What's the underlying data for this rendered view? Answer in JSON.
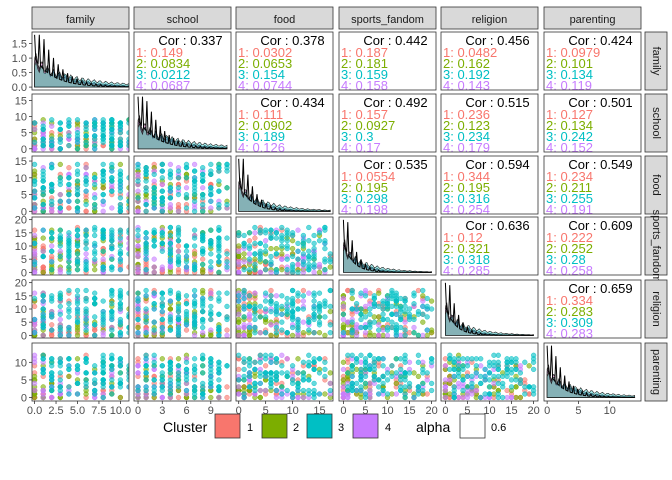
{
  "chart_data": {
    "type": "scatter",
    "variables": [
      "family",
      "school",
      "food",
      "sports_fandom",
      "religion",
      "parenting"
    ],
    "cor_prefix": "Cor : ",
    "correlations": [
      {
        "row": 0,
        "col": 1,
        "overall": "0.337",
        "clusters": [
          "1: 0.149",
          "2: 0.0834",
          "3: 0.0212",
          "4: 0.0687"
        ]
      },
      {
        "row": 0,
        "col": 2,
        "overall": "0.378",
        "clusters": [
          "1: 0.0302",
          "2: 0.0653",
          "3: 0.154",
          "4: 0.0744"
        ]
      },
      {
        "row": 0,
        "col": 3,
        "overall": "0.442",
        "clusters": [
          "1: 0.187",
          "2: 0.181",
          "3: 0.159",
          "4: 0.158"
        ]
      },
      {
        "row": 0,
        "col": 4,
        "overall": "0.456",
        "clusters": [
          "1: 0.0482",
          "2: 0.162",
          "3: 0.192",
          "4: 0.143"
        ]
      },
      {
        "row": 0,
        "col": 5,
        "overall": "0.424",
        "clusters": [
          "1: 0.0979",
          "2: 0.101",
          "3: 0.134",
          "4: 0.119"
        ]
      },
      {
        "row": 1,
        "col": 2,
        "overall": "0.434",
        "clusters": [
          "1: 0.111",
          "2: 0.0902",
          "3: 0.189",
          "4: 0.126"
        ]
      },
      {
        "row": 1,
        "col": 3,
        "overall": "0.492",
        "clusters": [
          "1: 0.157",
          "2: 0.0927",
          "3: 0.3",
          "4: 0.17"
        ]
      },
      {
        "row": 1,
        "col": 4,
        "overall": "0.515",
        "clusters": [
          "1: 0.236",
          "2: 0.123",
          "3: 0.234",
          "4: 0.179"
        ]
      },
      {
        "row": 1,
        "col": 5,
        "overall": "0.501",
        "clusters": [
          "1: 0.127",
          "2: 0.134",
          "3: 0.242",
          "4: 0.152"
        ]
      },
      {
        "row": 2,
        "col": 3,
        "overall": "0.535",
        "clusters": [
          "1: 0.0554",
          "2: 0.195",
          "3: 0.298",
          "4: 0.198"
        ]
      },
      {
        "row": 2,
        "col": 4,
        "overall": "0.594",
        "clusters": [
          "1: 0.344",
          "2: 0.195",
          "3: 0.316",
          "4: 0.254"
        ]
      },
      {
        "row": 2,
        "col": 5,
        "overall": "0.549",
        "clusters": [
          "1: 0.234",
          "2: 0.211",
          "3: 0.255",
          "4: 0.191"
        ]
      },
      {
        "row": 3,
        "col": 4,
        "overall": "0.636",
        "clusters": [
          "1: 0.12",
          "2: 0.321",
          "3: 0.318",
          "4: 0.285"
        ]
      },
      {
        "row": 3,
        "col": 5,
        "overall": "0.609",
        "clusters": [
          "1: 0.222",
          "2: 0.252",
          "3: 0.28",
          "4: 0.258"
        ]
      },
      {
        "row": 4,
        "col": 5,
        "overall": "0.659",
        "clusters": [
          "1: 0.334",
          "2: 0.283",
          "3: 0.309",
          "4: 0.283"
        ]
      }
    ],
    "x_ticks": [
      [
        "0.0",
        "2.5",
        "5.0",
        "7.5",
        "10.0"
      ],
      [
        "0",
        "3",
        "6",
        "9"
      ],
      [
        "0",
        "5",
        "10",
        "15"
      ],
      [
        "0",
        "5",
        "10",
        "15",
        "20"
      ],
      [
        "0",
        "5",
        "10",
        "15",
        "20"
      ],
      [
        "0",
        "5",
        "10"
      ]
    ],
    "x_tick_values": [
      [
        0,
        2.5,
        5,
        7.5,
        10
      ],
      [
        0,
        3,
        6,
        9
      ],
      [
        0,
        5,
        10,
        15
      ],
      [
        0,
        5,
        10,
        15,
        20
      ],
      [
        0,
        5,
        10,
        15,
        20
      ],
      [
        0,
        5,
        10
      ]
    ],
    "x_ranges": [
      [
        -0.3,
        11
      ],
      [
        -0.5,
        11.5
      ],
      [
        -0.5,
        17.5
      ],
      [
        -1,
        21
      ],
      [
        -1,
        21
      ],
      [
        -0.5,
        15
      ]
    ],
    "y_ticks": [
      [
        "0.0",
        "0.5",
        "1.0",
        "1.5"
      ],
      [
        "0",
        "5",
        "10",
        "15"
      ],
      [
        "0",
        "5",
        "10",
        "15"
      ],
      [
        "0",
        "5",
        "10",
        "15",
        "20"
      ],
      [
        "0",
        "5",
        "10",
        "15",
        "20"
      ],
      [
        "0",
        "5",
        "10"
      ]
    ],
    "y_tick_values": [
      [
        0,
        0.5,
        1,
        1.5
      ],
      [
        0,
        5,
        10,
        15
      ],
      [
        0,
        5,
        10,
        15
      ],
      [
        0,
        5,
        10,
        15,
        20
      ],
      [
        0,
        5,
        10,
        15,
        20
      ],
      [
        0,
        5,
        10
      ]
    ],
    "y_ranges": [
      [
        -0.1,
        1.9
      ],
      [
        -1,
        17
      ],
      [
        -0.8,
        16.5
      ],
      [
        -1,
        21
      ],
      [
        -1,
        21
      ],
      [
        -1,
        15.5
      ]
    ],
    "max_values": [
      11,
      11,
      17,
      20,
      20,
      14
    ],
    "legend": {
      "cluster_title": "Cluster",
      "clusters": [
        "1",
        "2",
        "3",
        "4"
      ],
      "alpha_title": "alpha",
      "alpha_value": "0.6"
    },
    "colors": {
      "1": "#F8766D",
      "2": "#7CAE00",
      "3": "#00BFC4",
      "4": "#C77CFF",
      "strip": "#D9D9D9",
      "panel_border": "#333333",
      "grid": "#EBEBEB",
      "tick_text": "#4D4D4D"
    },
    "grid": true
  }
}
